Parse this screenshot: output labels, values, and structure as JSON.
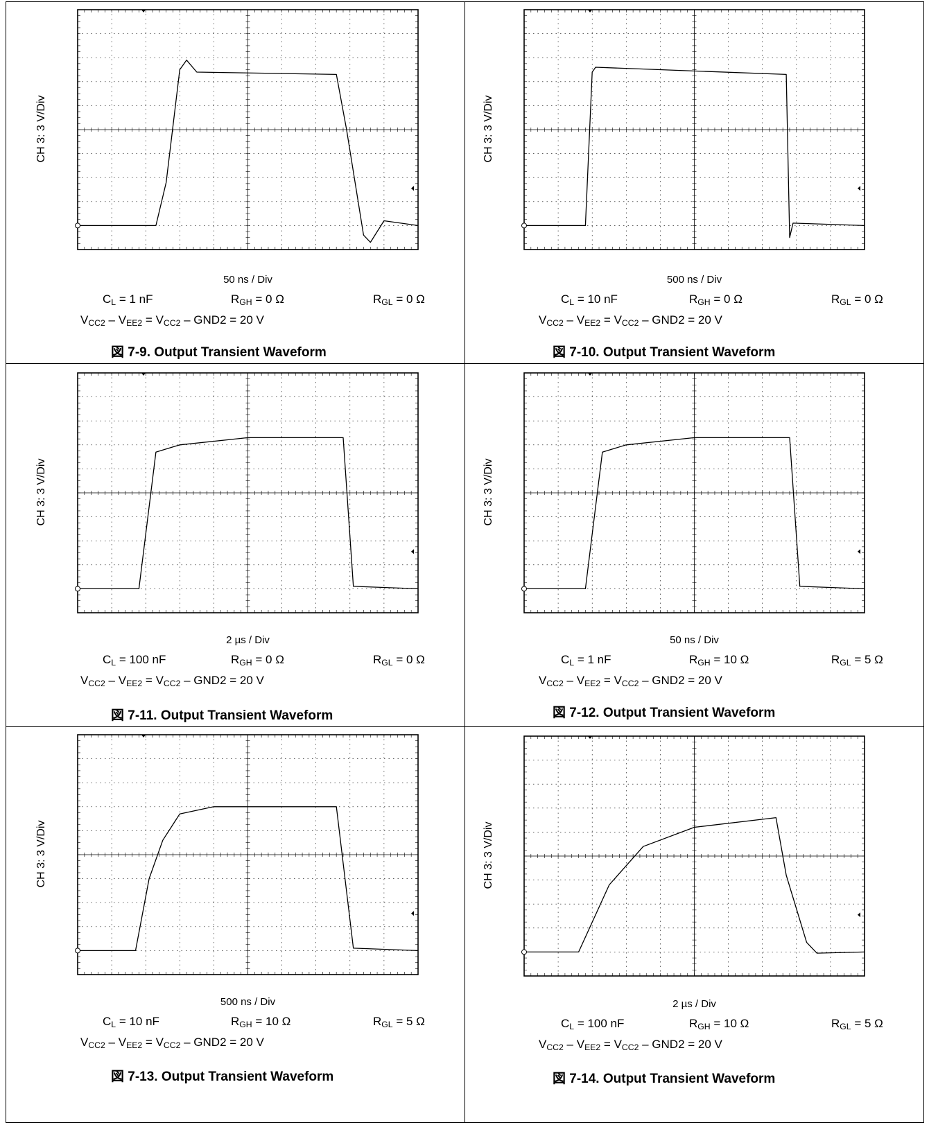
{
  "figures": [
    {
      "id": "fig-7-9",
      "ylabel": "CH 3: 3 V/Div",
      "time_div": "50 ns / Div",
      "cl": {
        "sym": "C",
        "sub": "L",
        "val": " = 1 nF"
      },
      "rgh": {
        "sym": "R",
        "sub": "GH",
        "val": " = 0 Ω"
      },
      "rgl": {
        "sym": "R",
        "sub": "GL",
        "val": " = 0 Ω"
      },
      "title": "図 7-9. Output Transient Waveform"
    },
    {
      "id": "fig-7-10",
      "ylabel": "CH 3: 3 V/Div",
      "time_div": "500 ns / Div",
      "cl": {
        "sym": "C",
        "sub": "L",
        "val": " = 10 nF"
      },
      "rgh": {
        "sym": "R",
        "sub": "GH",
        "val": " = 0 Ω"
      },
      "rgl": {
        "sym": "R",
        "sub": "GL",
        "val": " = 0 Ω"
      },
      "title": "図 7-10. Output Transient Waveform"
    },
    {
      "id": "fig-7-11",
      "ylabel": "CH 3: 3 V/Div",
      "time_div": "2 µs / Div",
      "cl": {
        "sym": "C",
        "sub": "L",
        "val": " = 100 nF"
      },
      "rgh": {
        "sym": "R",
        "sub": "GH",
        "val": " = 0 Ω"
      },
      "rgl": {
        "sym": "R",
        "sub": "GL",
        "val": " = 0 Ω"
      },
      "title": "図 7-11. Output Transient Waveform"
    },
    {
      "id": "fig-7-12",
      "ylabel": "CH 3: 3 V/Div",
      "time_div": "50 ns / Div",
      "cl": {
        "sym": "C",
        "sub": "L",
        "val": " = 1 nF"
      },
      "rgh": {
        "sym": "R",
        "sub": "GH",
        "val": " = 10 Ω"
      },
      "rgl": {
        "sym": "R",
        "sub": "GL",
        "val": " = 5 Ω"
      },
      "title": "図 7-12. Output Transient Waveform"
    },
    {
      "id": "fig-7-13",
      "ylabel": "CH 3: 3 V/Div",
      "time_div": "500 ns / Div",
      "cl": {
        "sym": "C",
        "sub": "L",
        "val": " = 10 nF"
      },
      "rgh": {
        "sym": "R",
        "sub": "GH",
        "val": " = 10 Ω"
      },
      "rgl": {
        "sym": "R",
        "sub": "GL",
        "val": " = 5 Ω"
      },
      "title": "図 7-13. Output Transient Waveform"
    },
    {
      "id": "fig-7-14",
      "ylabel": "CH 3: 3 V/Div",
      "time_div": "2 µs / Div",
      "cl": {
        "sym": "C",
        "sub": "L",
        "val": " = 100 nF"
      },
      "rgh": {
        "sym": "R",
        "sub": "GH",
        "val": " = 10 Ω"
      },
      "rgl": {
        "sym": "R",
        "sub": "GL",
        "val": " = 5 Ω"
      },
      "title": "図 7-14. Output Transient Waveform"
    }
  ],
  "supply": {
    "v1": "V",
    "v1sub": "CC2",
    "dash1": " – ",
    "v2": "V",
    "v2sub": "EE2",
    "eq1": " = ",
    "v3": "V",
    "v3sub": "CC2",
    "rest": " – GND2 = 20 V"
  },
  "chart_data": [
    {
      "type": "line",
      "title": "",
      "xlabel": "",
      "ylabel": "CH 3: 3 V/Div",
      "xlim": [
        0,
        10
      ],
      "ylim": [
        -1,
        9
      ],
      "series": [
        {
          "values": [
            [
              0,
              0
            ],
            [
              2.3,
              0
            ],
            [
              2.6,
              1.8
            ],
            [
              3,
              6.5
            ],
            [
              3.2,
              6.9
            ],
            [
              3.5,
              6.4
            ],
            [
              7.6,
              6.3
            ],
            [
              7.9,
              4
            ],
            [
              8.4,
              -0.4
            ],
            [
              8.6,
              -0.7
            ],
            [
              9,
              0.2
            ],
            [
              10,
              0
            ]
          ]
        }
      ]
    },
    {
      "type": "line",
      "title": "",
      "xlabel": "",
      "ylabel": "CH 3: 3 V/Div",
      "xlim": [
        0,
        10
      ],
      "ylim": [
        -1,
        9
      ],
      "series": [
        {
          "values": [
            [
              0,
              0
            ],
            [
              1.8,
              0
            ],
            [
              2,
              6.4
            ],
            [
              2.1,
              6.6
            ],
            [
              7.7,
              6.3
            ],
            [
              7.8,
              -0.5
            ],
            [
              7.9,
              0.1
            ],
            [
              10,
              0
            ]
          ]
        }
      ]
    },
    {
      "type": "line",
      "title": "",
      "xlabel": "",
      "ylabel": "CH 3: 3 V/Div",
      "xlim": [
        0,
        10
      ],
      "ylim": [
        -1,
        9
      ],
      "series": [
        {
          "values": [
            [
              0,
              0
            ],
            [
              1.8,
              0
            ],
            [
              2.3,
              5.7
            ],
            [
              3,
              6.0
            ],
            [
              5,
              6.3
            ],
            [
              7.8,
              6.3
            ],
            [
              8.1,
              0.1
            ],
            [
              10,
              0
            ]
          ]
        }
      ]
    },
    {
      "type": "line",
      "title": "",
      "xlabel": "",
      "ylabel": "CH 3: 3 V/Div",
      "xlim": [
        0,
        10
      ],
      "ylim": [
        -1,
        9
      ],
      "series": [
        {
          "values": [
            [
              0,
              0
            ],
            [
              1.8,
              0
            ],
            [
              2.3,
              5.7
            ],
            [
              3,
              6.0
            ],
            [
              5,
              6.3
            ],
            [
              7.8,
              6.3
            ],
            [
              8.1,
              0.1
            ],
            [
              10,
              0
            ]
          ]
        }
      ]
    },
    {
      "type": "line",
      "title": "",
      "xlabel": "",
      "ylabel": "CH 3: 3 V/Div",
      "xlim": [
        0,
        10
      ],
      "ylim": [
        -1,
        9
      ],
      "series": [
        {
          "values": [
            [
              0,
              0
            ],
            [
              1.7,
              0
            ],
            [
              2.1,
              3
            ],
            [
              2.5,
              4.6
            ],
            [
              3,
              5.7
            ],
            [
              4,
              6.0
            ],
            [
              7.6,
              6.0
            ],
            [
              8.1,
              0.1
            ],
            [
              10,
              0
            ]
          ]
        }
      ]
    },
    {
      "type": "line",
      "title": "",
      "xlabel": "",
      "ylabel": "CH 3: 3 V/Div",
      "xlim": [
        0,
        10
      ],
      "ylim": [
        -1,
        9
      ],
      "series": [
        {
          "values": [
            [
              0,
              0
            ],
            [
              1.6,
              0
            ],
            [
              2.5,
              2.8
            ],
            [
              3.5,
              4.4
            ],
            [
              5,
              5.2
            ],
            [
              7.4,
              5.6
            ],
            [
              7.7,
              3.2
            ],
            [
              8.3,
              0.4
            ],
            [
              8.6,
              -0.05
            ],
            [
              10,
              0
            ]
          ]
        }
      ]
    }
  ]
}
